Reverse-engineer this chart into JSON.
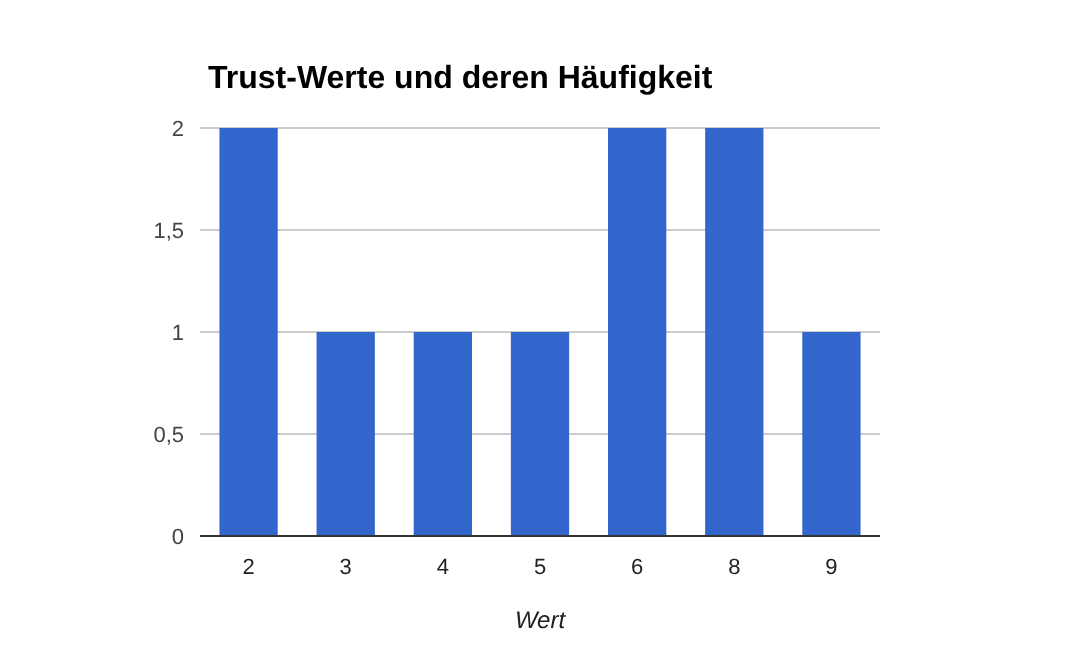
{
  "chart_data": {
    "type": "bar",
    "title": "Trust-Werte und deren Häufigkeit",
    "xlabel": "Wert",
    "categories": [
      "2",
      "3",
      "4",
      "5",
      "6",
      "8",
      "9"
    ],
    "values": [
      2,
      1,
      1,
      1,
      2,
      2,
      1
    ],
    "color": "#3366cc",
    "ylim": [
      0,
      2
    ],
    "yticks": [
      0,
      {
        "value": 0.5,
        "label": "0,5"
      },
      1,
      {
        "value": 1.5,
        "label": "1,5"
      },
      2
    ],
    "grid": "y"
  }
}
